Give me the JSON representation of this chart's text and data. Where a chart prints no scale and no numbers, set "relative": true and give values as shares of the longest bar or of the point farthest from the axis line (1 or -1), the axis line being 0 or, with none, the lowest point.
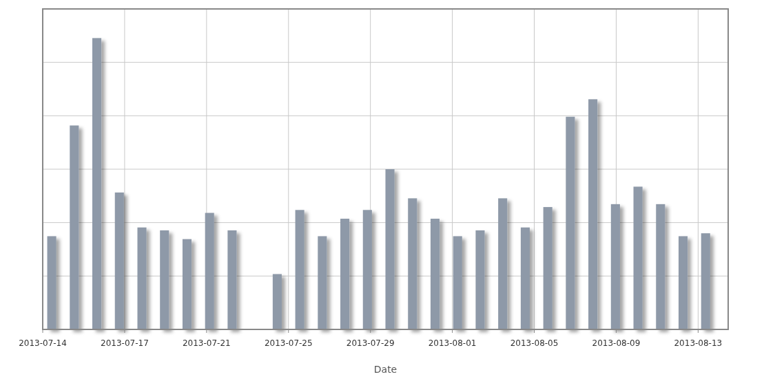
{
  "chart_data": {
    "type": "bar",
    "xlabel": "Date",
    "relative": true,
    "grid": true,
    "color": "#8e99a8",
    "x": [
      "2013-07-14",
      "2013-07-15",
      "2013-07-16",
      "2013-07-17",
      "2013-07-18",
      "2013-07-19",
      "2013-07-20",
      "2013-07-21",
      "2013-07-22",
      "2013-07-23",
      "2013-07-24",
      "2013-07-25",
      "2013-07-26",
      "2013-07-27",
      "2013-07-28",
      "2013-07-29",
      "2013-07-30",
      "2013-07-31",
      "2013-08-01",
      "2013-08-02",
      "2013-08-03",
      "2013-08-04",
      "2013-08-05",
      "2013-08-06",
      "2013-08-07",
      "2013-08-08",
      "2013-08-09",
      "2013-08-10",
      "2013-08-11",
      "2013-08-12"
    ],
    "values": [
      0.32,
      0.7,
      1,
      0.47,
      0.35,
      0.34,
      0.31,
      0.4,
      0.34,
      null,
      0.19,
      0.41,
      0.32,
      0.38,
      0.41,
      0.55,
      0.45,
      0.38,
      0.32,
      0.34,
      0.45,
      0.35,
      0.42,
      0.73,
      0.79,
      0.43,
      0.49,
      0.43,
      0.32,
      0.33
    ],
    "xlim": [
      "2013-07-13T14:24",
      "2013-08-13T00:00"
    ],
    "xticks": [
      {
        "value": "2013-07-13T14:24",
        "label": "2013-07-14"
      },
      {
        "value": "2013-07-17T05:36",
        "label": "2013-07-17"
      },
      {
        "value": "2013-07-20T20:48",
        "label": "2013-07-21"
      },
      {
        "value": "2013-07-24T12:00",
        "label": "2013-07-25"
      },
      {
        "value": "2013-07-28T03:12",
        "label": "2013-07-29"
      },
      {
        "value": "2013-07-31T18:24",
        "label": "2013-08-01"
      },
      {
        "value": "2013-08-04T09:36",
        "label": "2013-08-05"
      },
      {
        "value": "2013-08-08T00:48",
        "label": "2013-08-09"
      },
      {
        "value": "2013-08-11T16:00",
        "label": "2013-08-13"
      }
    ]
  }
}
